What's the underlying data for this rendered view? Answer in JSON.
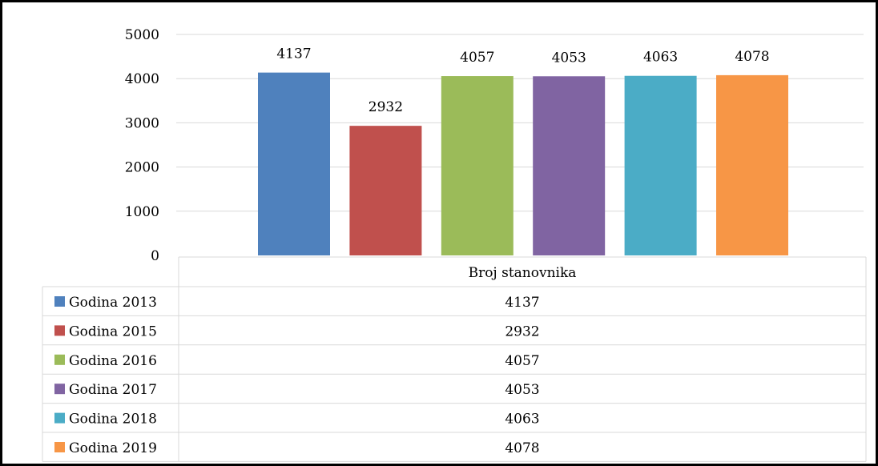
{
  "chart_data": {
    "type": "bar",
    "categories": [
      "Broj stanovnika"
    ],
    "series": [
      {
        "name": "Godina 2013",
        "values": [
          4137
        ],
        "color": "#4f81bd"
      },
      {
        "name": "Godina 2015",
        "values": [
          2932
        ],
        "color": "#c0504d"
      },
      {
        "name": "Godina 2016",
        "values": [
          4057
        ],
        "color": "#9bbb59"
      },
      {
        "name": "Godina 2017",
        "values": [
          4053
        ],
        "color": "#8064a2"
      },
      {
        "name": "Godina 2018",
        "values": [
          4063
        ],
        "color": "#4bacc6"
      },
      {
        "name": "Godina 2019",
        "values": [
          4078
        ],
        "color": "#f79646"
      }
    ],
    "title": "",
    "xlabel": "",
    "ylabel": "",
    "ylim": [
      0,
      5000
    ],
    "yticks": [
      0,
      1000,
      2000,
      3000,
      4000,
      5000
    ],
    "grid": true,
    "data_labels": true,
    "legend_placement": "data-table-left"
  }
}
